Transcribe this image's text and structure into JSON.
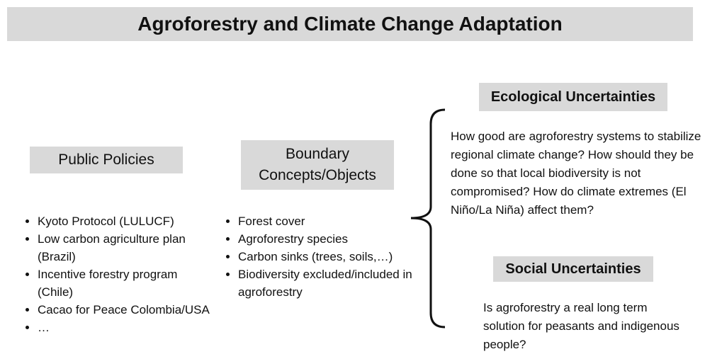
{
  "title": "Agroforestry and Climate Change Adaptation",
  "public_policies": {
    "heading": "Public Policies",
    "items": [
      "Kyoto Protocol (LULUCF)",
      "Low carbon agriculture plan (Brazil)",
      "Incentive forestry program (Chile)",
      "Cacao for Peace Colombia/USA",
      "…"
    ]
  },
  "boundary": {
    "heading": "Boundary Concepts/Objects",
    "items": [
      "Forest cover",
      "Agroforestry species",
      "Carbon sinks (trees, soils,…)",
      "Biodiversity excluded/included in agroforestry"
    ]
  },
  "ecological": {
    "heading": "Ecological Uncertainties",
    "text": "How good are agroforestry systems to stabilize regional climate change? How should they be done so that local biodiversity is not compromised? How do climate extremes (El Niño/La Niña) affect them?"
  },
  "social": {
    "heading": "Social Uncertainties",
    "text": "Is agroforestry a real long term solution for peasants and indigenous people?"
  }
}
